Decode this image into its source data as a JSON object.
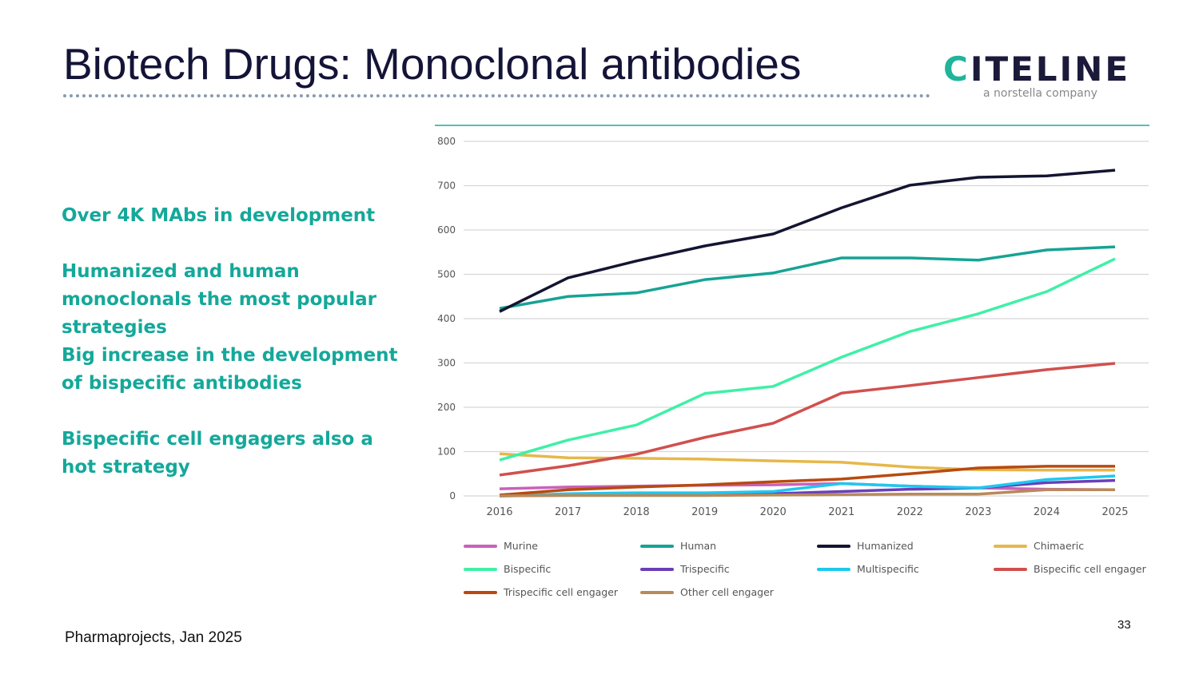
{
  "title": "Biotech Drugs: Monoclonal antibodies",
  "logo": {
    "text": "CITELINE",
    "subtitle": "a norstella company"
  },
  "bullets": [
    "Over 4K MAbs in development",
    "Humanized and human monoclonals the most popular strategies",
    "Big increase in the development of bispecific antibodies",
    "Bispecific cell engagers also a hot strategy"
  ],
  "source": "Pharmaprojects, Jan 2025",
  "page_number": "33",
  "chart_data": {
    "type": "line",
    "title": "",
    "xlabel": "",
    "ylabel": "",
    "ylim": [
      0,
      800
    ],
    "yticks": [
      0,
      100,
      200,
      300,
      400,
      500,
      600,
      700,
      800
    ],
    "categories": [
      "2016",
      "2017",
      "2018",
      "2019",
      "2020",
      "2021",
      "2022",
      "2023",
      "2024",
      "2025"
    ],
    "legend_position": "bottom",
    "grid": true,
    "series": [
      {
        "name": "Murine",
        "color": "#c862b8",
        "values": [
          16,
          20,
          22,
          24,
          25,
          28,
          22,
          18,
          15,
          14
        ]
      },
      {
        "name": "Human",
        "color": "#16a394",
        "values": [
          423,
          450,
          458,
          488,
          503,
          537,
          537,
          532,
          555,
          562
        ]
      },
      {
        "name": "Humanized",
        "color": "#141432",
        "values": [
          416,
          492,
          530,
          564,
          591,
          650,
          701,
          719,
          722,
          735
        ]
      },
      {
        "name": "Chimaeric",
        "color": "#e6b84a",
        "values": [
          95,
          86,
          85,
          83,
          79,
          76,
          65,
          59,
          58,
          58
        ]
      },
      {
        "name": "Bispecific",
        "color": "#3ff0a6",
        "values": [
          81,
          126,
          160,
          231,
          247,
          313,
          371,
          411,
          461,
          535
        ]
      },
      {
        "name": "Trispecific",
        "color": "#6a3fb8",
        "values": [
          0,
          2,
          3,
          4,
          5,
          10,
          15,
          18,
          30,
          35
        ]
      },
      {
        "name": "Multispecific",
        "color": "#1ec8f0",
        "values": [
          0,
          5,
          7,
          7,
          10,
          28,
          22,
          18,
          37,
          45
        ]
      },
      {
        "name": "Bispecific cell engager",
        "color": "#d0504e",
        "values": [
          47,
          68,
          94,
          132,
          164,
          232,
          249,
          267,
          285,
          299
        ]
      },
      {
        "name": "Trispecific cell engager",
        "color": "#b84a10",
        "values": [
          2,
          14,
          20,
          25,
          32,
          38,
          50,
          63,
          67,
          67
        ]
      },
      {
        "name": "Other cell engager",
        "color": "#b88a5a",
        "values": [
          0,
          1,
          1,
          1,
          2,
          3,
          4,
          4,
          14,
          14
        ]
      }
    ]
  }
}
